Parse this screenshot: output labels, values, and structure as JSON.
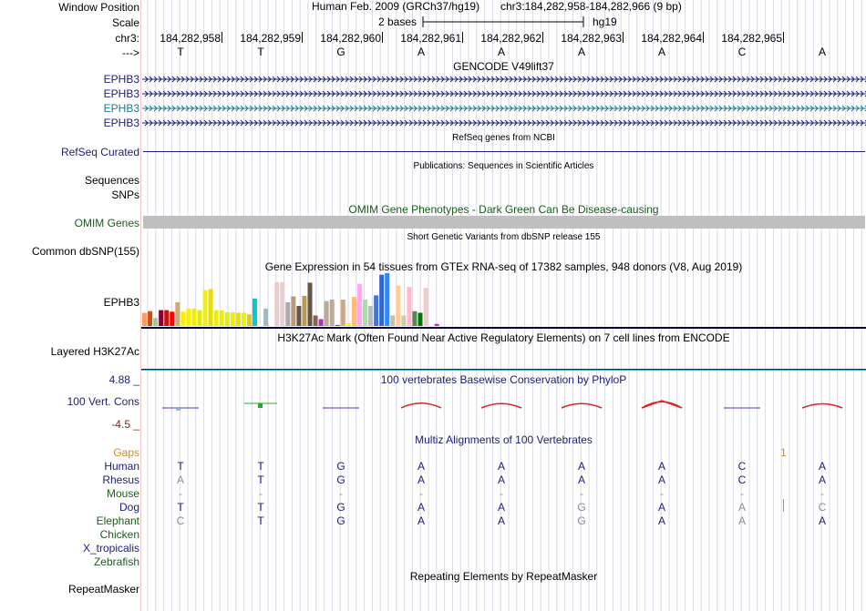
{
  "ruler": {
    "window_position_label": "Window Position",
    "scale_label": "Scale",
    "chrom_label": "chr3:",
    "strand_label": "--->",
    "assembly": "Human Feb. 2009 (GRCh37/hg19)",
    "position": "chr3:184,282,958-184,282,966 (9 bp)",
    "scale_text": "2 bases",
    "db": "hg19",
    "coordinates": [
      "184,282,958",
      "184,282,959",
      "184,282,960",
      "184,282,961",
      "184,282,962",
      "184,282,963",
      "184,282,964",
      "184,282,965"
    ],
    "bases": [
      "T",
      "T",
      "G",
      "A",
      "A",
      "A",
      "A",
      "C",
      "A"
    ]
  },
  "tracks": {
    "gencode": {
      "title": "GENCODE V49lift37",
      "labels": [
        "EPHB3",
        "EPHB3",
        "EPHB3",
        "EPHB3"
      ]
    },
    "refseq": {
      "label": "RefSeq Curated",
      "title": "RefSeq genes from NCBI"
    },
    "publications": {
      "title": "Publications: Sequences in Scientific Articles",
      "labels": [
        "Sequences",
        "SNPs"
      ]
    },
    "omim": {
      "label": "OMIM Genes",
      "title": "OMIM Gene Phenotypes - Dark Green Can Be Disease-causing"
    },
    "dbsnp": {
      "label": "Common dbSNP(155)",
      "title": "Short Genetic Variants from dbSNP release 155"
    },
    "gtex": {
      "label": "EPHB3",
      "title": "Gene Expression in 54 tissues from GTEx RNA-seq of 17382 samples, 948 donors (V8, Aug 2019)",
      "values": [
        0.25,
        0.28,
        0.15,
        0.3,
        0.3,
        0.27,
        0.45,
        0.27,
        0.33,
        0.33,
        0.3,
        0.68,
        0.7,
        0.3,
        0.3,
        0.26,
        0.26,
        0.25,
        0.25,
        0.22,
        0.52,
        0.02,
        0.33,
        0.2,
        0.83,
        0.83,
        0.45,
        0.56,
        0.38,
        0.57,
        0.82,
        0.2,
        0.13,
        0.47,
        0.5,
        0.02,
        0.5,
        0.05,
        0.55,
        0.8,
        0.5,
        0.38,
        0.58,
        0.97,
        1.0,
        0.2,
        0.77,
        0.2,
        0.74,
        0.28,
        0.25,
        0.72,
        0.0,
        0.04
      ],
      "colors": [
        "#ff9966",
        "#bb5522",
        "#99cc99",
        "#880033",
        "#cc1111",
        "#ff0000",
        "#ccaa77",
        "#ffee00",
        "#ffee00",
        "#eeee00",
        "#e8e800",
        "#eeee22",
        "#eedd00",
        "#eeee00",
        "#eeee00",
        "#ddee11",
        "#eeee00",
        "#eedd00",
        "#eeee00",
        "#ddd000",
        "#00cccc",
        "#ffffff",
        "#99bbcc",
        "#ffffff",
        "#eecccc",
        "#eecccc",
        "#aaaaaa",
        "#bb9977",
        "#665544",
        "#bb9955",
        "#665544",
        "#886655",
        "#aa33bb",
        "#bbaa99",
        "#bbaa99",
        "#6655cc",
        "#ccaa88",
        "#ffee00",
        "#ffbb77",
        "#ffaaee",
        "#aaddaa",
        "#bbbbbb",
        "#4477cc",
        "#3366cc",
        "#3388ee",
        "#ccbbaa",
        "#ffcc99",
        "#ccccaa",
        "#ffbbcc",
        "#558855",
        "#007700",
        "#eecccc",
        "#ffffff",
        "#dd22dd"
      ]
    },
    "h3k27ac": {
      "label": "Layered H3K27Ac",
      "title": "H3K27Ac Mark (Often Found Near Active Regulatory Elements) on 7 cell lines from ENCODE"
    },
    "conservation": {
      "label": "100 Vert. Cons",
      "title": "100 vertebrates Basewise Conservation by PhyloP",
      "max": "4.88 _",
      "min": "-4.5 _",
      "scores": [
        -0.1,
        0.45,
        0.05,
        -0.9,
        -0.7,
        -0.7,
        -1.5,
        -0.05,
        -0.6
      ]
    },
    "multiz": {
      "title": "Multiz Alignments of 100 Vertebrates",
      "gaps_label": "Gaps",
      "gaps_value": "1",
      "species": [
        {
          "name": "Human",
          "color": "#20207a",
          "bases": [
            "T",
            "T",
            "G",
            "A",
            "A",
            "A",
            "A",
            "C",
            "A"
          ],
          "faded": [
            false,
            false,
            false,
            false,
            false,
            false,
            false,
            false,
            false
          ]
        },
        {
          "name": "Rhesus",
          "color": "#20207a",
          "bases": [
            "A",
            "T",
            "G",
            "A",
            "A",
            "A",
            "A",
            "C",
            "A"
          ],
          "faded": [
            true,
            false,
            false,
            false,
            false,
            false,
            false,
            false,
            false
          ]
        },
        {
          "name": "Mouse",
          "color": "#1a5e1a",
          "bases": [
            "-",
            "-",
            "-",
            "-",
            "-",
            "-",
            "-",
            "-",
            "-"
          ],
          "faded": [
            true,
            true,
            true,
            true,
            true,
            true,
            true,
            true,
            true
          ]
        },
        {
          "name": "Dog",
          "color": "#20207a",
          "bases": [
            "T",
            "T",
            "G",
            "A",
            "A",
            "G",
            "A",
            "A",
            "C"
          ],
          "faded": [
            false,
            false,
            false,
            false,
            false,
            true,
            false,
            true,
            true
          ]
        },
        {
          "name": "Elephant",
          "color": "#1a5e1a",
          "bases": [
            "C",
            "T",
            "G",
            "A",
            "A",
            "G",
            "A",
            "A",
            "A"
          ],
          "faded": [
            true,
            false,
            false,
            false,
            false,
            true,
            false,
            true,
            false
          ]
        },
        {
          "name": "Chicken",
          "color": "#1a5e1a",
          "bases": [
            "",
            "",
            "",
            "",
            "",
            "",
            "",
            "",
            ""
          ],
          "faded": [
            false,
            false,
            false,
            false,
            false,
            false,
            false,
            false,
            false
          ]
        },
        {
          "name": "X_tropicalis",
          "color": "#20207a",
          "bases": [
            "",
            "",
            "",
            "",
            "",
            "",
            "",
            "",
            ""
          ],
          "faded": [
            false,
            false,
            false,
            false,
            false,
            false,
            false,
            false,
            false
          ]
        },
        {
          "name": "Zebrafish",
          "color": "#1a5e1a",
          "bases": [
            "",
            "",
            "",
            "",
            "",
            "",
            "",
            "",
            ""
          ],
          "faded": [
            false,
            false,
            false,
            false,
            false,
            false,
            false,
            false,
            false
          ]
        }
      ]
    },
    "repeatmasker": {
      "label": "RepeatMasker",
      "title": "Repeating Elements by RepeatMasker"
    }
  },
  "colors": {
    "navy": "#20207a",
    "omim_bar": "#c0c0c0",
    "grid_line": "#d8d8e8",
    "separator": "#000040",
    "cons_positive": "#1cb21c",
    "cons_negative": "#e02020",
    "cons_neutral": "#4040c0"
  }
}
